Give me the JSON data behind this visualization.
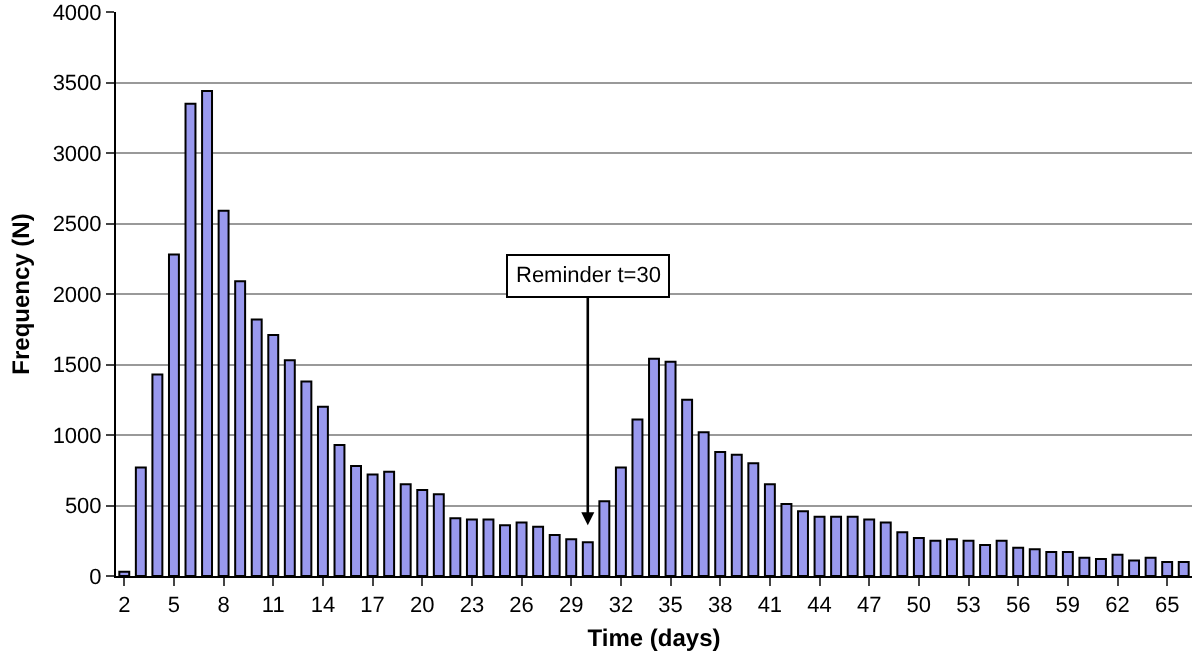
{
  "chart_data": {
    "type": "bar",
    "xlabel": "Time (days)",
    "ylabel": "Frequency (N)",
    "categories": [
      "2",
      null,
      null,
      "5",
      null,
      null,
      "8",
      null,
      null,
      "11",
      null,
      null,
      "14",
      null,
      null,
      "17",
      null,
      null,
      "20",
      null,
      null,
      "23",
      null,
      null,
      "26",
      null,
      null,
      "29",
      null,
      null,
      "32",
      null,
      null,
      "35",
      null,
      null,
      "38",
      null,
      null,
      "41",
      null,
      null,
      "44",
      null,
      null,
      "47",
      null,
      null,
      "50",
      null,
      null,
      "53",
      null,
      null,
      "56",
      null,
      null,
      "59",
      null,
      null,
      "62",
      null,
      null,
      "65",
      null
    ],
    "values": [
      30,
      770,
      1430,
      2280,
      3350,
      3440,
      2590,
      2090,
      1820,
      1710,
      1530,
      1380,
      1200,
      930,
      780,
      720,
      740,
      650,
      610,
      580,
      410,
      400,
      400,
      360,
      380,
      350,
      290,
      260,
      240,
      530,
      770,
      1110,
      1540,
      1520,
      1250,
      1020,
      880,
      860,
      800,
      650,
      510,
      460,
      420,
      420,
      420,
      400,
      380,
      310,
      270,
      250,
      260,
      250,
      220,
      250,
      200,
      190,
      170,
      170,
      130,
      120,
      150,
      110,
      130,
      100,
      100
    ],
    "color": "#9999ee",
    "ylim": [
      0,
      4000
    ],
    "yticks": [
      0,
      500,
      1000,
      1500,
      2000,
      2500,
      3000,
      3500,
      4000
    ],
    "grid": "y",
    "annotations": [
      "Reminder t=30"
    ]
  }
}
